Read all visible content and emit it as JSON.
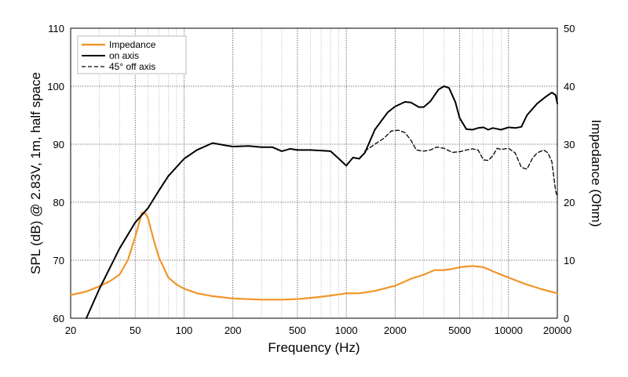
{
  "chart_data": {
    "type": "line",
    "xscale": "log",
    "xlabel": "Frequency (Hz)",
    "ylabel_left": "SPL (dB) @ 2.83V, 1m, half space",
    "ylabel_right": "Impedance (Ohm)",
    "xlim": [
      20,
      20000
    ],
    "ylim_left": [
      60,
      110
    ],
    "ylim_right": [
      0,
      50
    ],
    "x_ticks": [
      20,
      50,
      100,
      200,
      500,
      1000,
      2000,
      5000,
      10000,
      20000
    ],
    "x_tick_labels": [
      "20",
      "50",
      "100",
      "200",
      "500",
      "1000",
      "2000",
      "5000",
      "10000",
      "20000"
    ],
    "y_left_ticks": [
      60,
      70,
      80,
      90,
      100,
      110
    ],
    "y_left_tick_labels": [
      "60",
      "70",
      "80",
      "90",
      "100",
      "110"
    ],
    "y_right_ticks": [
      0,
      10,
      20,
      30,
      40,
      50
    ],
    "y_right_tick_labels": [
      "0",
      "10",
      "20",
      "30",
      "40",
      "50"
    ],
    "grid": true,
    "legend_position": "top-left",
    "series": [
      {
        "name": "Impedance",
        "axis": "right",
        "color": "#f0962a",
        "style": "solid",
        "points": [
          [
            20,
            4.0
          ],
          [
            25,
            4.6
          ],
          [
            30,
            5.5
          ],
          [
            35,
            6.4
          ],
          [
            40,
            7.5
          ],
          [
            45,
            10.0
          ],
          [
            50,
            14.0
          ],
          [
            55,
            18.2
          ],
          [
            58,
            18.0
          ],
          [
            60,
            17.2
          ],
          [
            65,
            13.5
          ],
          [
            70,
            10.5
          ],
          [
            80,
            7.0
          ],
          [
            90,
            5.8
          ],
          [
            100,
            5.1
          ],
          [
            120,
            4.3
          ],
          [
            150,
            3.8
          ],
          [
            200,
            3.4
          ],
          [
            300,
            3.2
          ],
          [
            400,
            3.2
          ],
          [
            500,
            3.3
          ],
          [
            600,
            3.5
          ],
          [
            700,
            3.7
          ],
          [
            800,
            3.9
          ],
          [
            900,
            4.1
          ],
          [
            1000,
            4.3
          ],
          [
            1200,
            4.3
          ],
          [
            1500,
            4.7
          ],
          [
            2000,
            5.6
          ],
          [
            2500,
            6.8
          ],
          [
            3000,
            7.5
          ],
          [
            3500,
            8.3
          ],
          [
            4000,
            8.3
          ],
          [
            4500,
            8.5
          ],
          [
            5000,
            8.8
          ],
          [
            6000,
            9.0
          ],
          [
            7000,
            8.8
          ],
          [
            8000,
            8.1
          ],
          [
            10000,
            7.0
          ],
          [
            13000,
            5.8
          ],
          [
            16000,
            5.0
          ],
          [
            20000,
            4.3
          ]
        ]
      },
      {
        "name": "on axis",
        "axis": "left",
        "color": "#000000",
        "style": "solid",
        "points": [
          [
            25,
            60
          ],
          [
            30,
            65
          ],
          [
            40,
            72
          ],
          [
            50,
            76.5
          ],
          [
            60,
            79
          ],
          [
            70,
            82
          ],
          [
            80,
            84.5
          ],
          [
            100,
            87.5
          ],
          [
            120,
            89
          ],
          [
            150,
            90.2
          ],
          [
            180,
            89.8
          ],
          [
            200,
            89.6
          ],
          [
            250,
            89.7
          ],
          [
            300,
            89.5
          ],
          [
            350,
            89.5
          ],
          [
            400,
            88.8
          ],
          [
            450,
            89.2
          ],
          [
            500,
            89.0
          ],
          [
            600,
            89.0
          ],
          [
            700,
            88.9
          ],
          [
            800,
            88.8
          ],
          [
            900,
            87.5
          ],
          [
            1000,
            86.3
          ],
          [
            1100,
            87.7
          ],
          [
            1200,
            87.5
          ],
          [
            1300,
            88.5
          ],
          [
            1500,
            92.5
          ],
          [
            1800,
            95.5
          ],
          [
            2000,
            96.5
          ],
          [
            2300,
            97.3
          ],
          [
            2500,
            97.2
          ],
          [
            2800,
            96.4
          ],
          [
            3000,
            96.4
          ],
          [
            3300,
            97.4
          ],
          [
            3700,
            99.4
          ],
          [
            4000,
            100.0
          ],
          [
            4300,
            99.7
          ],
          [
            4700,
            97.3
          ],
          [
            5000,
            94.5
          ],
          [
            5500,
            92.6
          ],
          [
            6000,
            92.5
          ],
          [
            6500,
            92.8
          ],
          [
            7000,
            92.9
          ],
          [
            7500,
            92.5
          ],
          [
            8000,
            92.8
          ],
          [
            9000,
            92.5
          ],
          [
            10000,
            92.9
          ],
          [
            11000,
            92.8
          ],
          [
            12000,
            93.0
          ],
          [
            13000,
            95.0
          ],
          [
            15000,
            97.0
          ],
          [
            17000,
            98.2
          ],
          [
            18500,
            98.9
          ],
          [
            19500,
            98.5
          ],
          [
            20000,
            97.0
          ]
        ]
      },
      {
        "name": "45° off axis",
        "axis": "left",
        "color": "#000000",
        "style": "dashed",
        "points": [
          [
            1300,
            88.8
          ],
          [
            1500,
            90.0
          ],
          [
            1700,
            91.0
          ],
          [
            1900,
            92.3
          ],
          [
            2100,
            92.4
          ],
          [
            2300,
            92.0
          ],
          [
            2500,
            90.7
          ],
          [
            2700,
            89.0
          ],
          [
            3000,
            88.8
          ],
          [
            3300,
            89.0
          ],
          [
            3600,
            89.5
          ],
          [
            4000,
            89.3
          ],
          [
            4500,
            88.6
          ],
          [
            5000,
            88.7
          ],
          [
            5500,
            89.0
          ],
          [
            6000,
            89.2
          ],
          [
            6500,
            89.0
          ],
          [
            7000,
            87.3
          ],
          [
            7500,
            87.2
          ],
          [
            8000,
            88.0
          ],
          [
            8500,
            89.3
          ],
          [
            9000,
            89.1
          ],
          [
            10000,
            89.3
          ],
          [
            11000,
            88.5
          ],
          [
            12000,
            86.0
          ],
          [
            13000,
            85.7
          ],
          [
            14000,
            87.5
          ],
          [
            15000,
            88.5
          ],
          [
            16500,
            89.0
          ],
          [
            17500,
            88.5
          ],
          [
            18500,
            87.0
          ],
          [
            19500,
            82.0
          ],
          [
            20000,
            81.0
          ]
        ]
      }
    ]
  }
}
